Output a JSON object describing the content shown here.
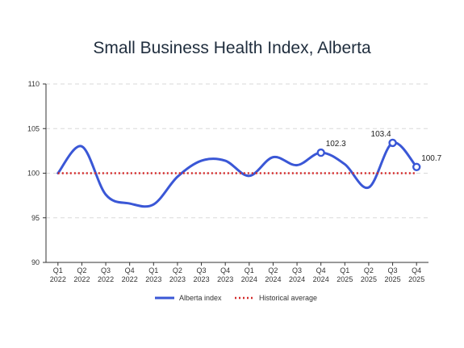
{
  "chart_data": {
    "type": "line",
    "title": "Small Business Health Index, Alberta",
    "xlabel": "",
    "ylabel": "",
    "ylim": [
      90,
      110
    ],
    "yticks": [
      90,
      95,
      100,
      105,
      110
    ],
    "grid": true,
    "legend_position": "bottom",
    "categories": [
      [
        "Q1",
        "2022"
      ],
      [
        "Q2",
        "2022"
      ],
      [
        "Q3",
        "2022"
      ],
      [
        "Q4",
        "2022"
      ],
      [
        "Q1",
        "2023"
      ],
      [
        "Q2",
        "2023"
      ],
      [
        "Q3",
        "2023"
      ],
      [
        "Q4",
        "2023"
      ],
      [
        "Q1",
        "2024"
      ],
      [
        "Q2",
        "2024"
      ],
      [
        "Q3",
        "2024"
      ],
      [
        "Q4",
        "2024"
      ],
      [
        "Q1",
        "2025"
      ],
      [
        "Q2",
        "2025"
      ],
      [
        "Q3",
        "2025"
      ],
      [
        "Q4",
        "2025"
      ]
    ],
    "series": [
      {
        "name": "Alberta index",
        "color": "#3a57d6",
        "style": "solid-smooth",
        "values": [
          100.0,
          103.0,
          97.6,
          96.6,
          96.5,
          99.6,
          101.4,
          101.4,
          99.7,
          101.8,
          100.9,
          102.3,
          101.0,
          98.4,
          103.4,
          100.7
        ],
        "labeled_points": [
          {
            "index": 11,
            "label": "102.3"
          },
          {
            "index": 14,
            "label": "103.4"
          },
          {
            "index": 15,
            "label": "100.7"
          }
        ]
      },
      {
        "name": "Historical average",
        "color": "#d42a2a",
        "style": "dotted",
        "values": [
          100,
          100,
          100,
          100,
          100,
          100,
          100,
          100,
          100,
          100,
          100,
          100,
          100,
          100,
          100,
          100
        ]
      }
    ]
  },
  "colors": {
    "axis": "#333333",
    "grid": "#d9d9d9",
    "title": "#1f2d3d"
  }
}
